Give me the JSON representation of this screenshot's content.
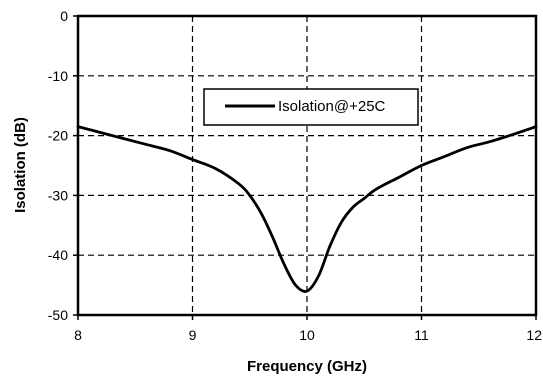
{
  "chart_data": {
    "type": "line",
    "title": "",
    "xlabel": "Frequency (GHz)",
    "ylabel": "Isolation (dB)",
    "xlim": [
      8,
      12
    ],
    "ylim": [
      -50,
      0
    ],
    "x_ticks": [
      8,
      9,
      10,
      11,
      12
    ],
    "y_ticks": [
      0,
      -10,
      -20,
      -30,
      -40,
      -50
    ],
    "x_tick_labels": [
      "8",
      "9",
      "10",
      "11",
      "12"
    ],
    "y_tick_labels": [
      "0",
      "-10",
      "-20",
      "-30",
      "-40",
      "-50"
    ],
    "grid": true,
    "legend_position": "top-center",
    "series": [
      {
        "name": "Isolation@+25C",
        "color": "#000000",
        "x": [
          8.0,
          8.2,
          8.4,
          8.6,
          8.8,
          9.0,
          9.2,
          9.4,
          9.5,
          9.6,
          9.7,
          9.8,
          9.9,
          10.0,
          10.1,
          10.2,
          10.3,
          10.4,
          10.5,
          10.6,
          10.8,
          11.0,
          11.2,
          11.4,
          11.6,
          11.8,
          12.0
        ],
        "y": [
          -18.5,
          -19.5,
          -20.5,
          -21.5,
          -22.5,
          -24.0,
          -25.5,
          -28.0,
          -30.0,
          -33.0,
          -37.0,
          -41.5,
          -45.0,
          -46.0,
          -43.5,
          -38.5,
          -34.5,
          -32.0,
          -30.5,
          -29.0,
          -27.0,
          -25.0,
          -23.5,
          -22.0,
          -21.0,
          -19.8,
          -18.5
        ]
      }
    ]
  }
}
